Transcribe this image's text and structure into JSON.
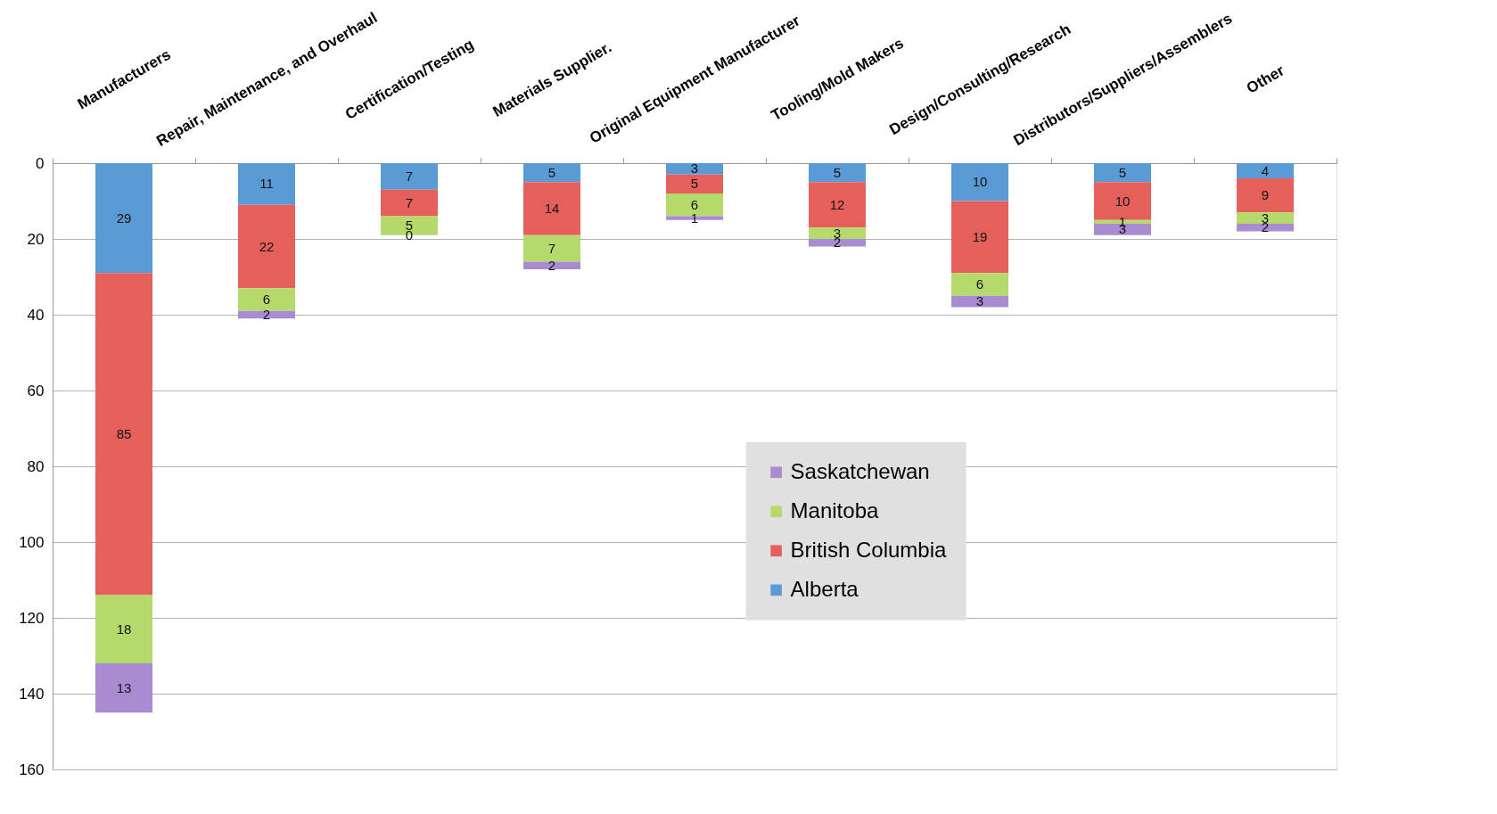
{
  "chart_data": {
    "type": "bar",
    "stacked": true,
    "data_labels": true,
    "grid": "y",
    "legend": "bottom right",
    "categories": [
      "Manufacturers",
      "Repair, Maintenance, and Overhaul",
      "Certification/Testing",
      "Materials Supplier.",
      "Original Equipment Manufacturer",
      "Tooling/Mold Makers",
      "Design/Consulting/Research",
      "Distributors/Suppliers/Assemblers",
      "Other"
    ],
    "ylim": [
      160,
      0
    ],
    "yticks": [
      0,
      20,
      40,
      60,
      80,
      100,
      120,
      140,
      160
    ],
    "series": [
      {
        "name": "Alberta",
        "color": "#5b9bd5",
        "values": [
          29,
          11,
          7,
          5,
          3,
          5,
          10,
          5,
          4
        ]
      },
      {
        "name": "British Columbia",
        "color": "#e5605a",
        "values": [
          85,
          22,
          7,
          14,
          5,
          12,
          19,
          10,
          9
        ]
      },
      {
        "name": "Manitoba",
        "color": "#b5d96b",
        "values": [
          18,
          6,
          5,
          7,
          6,
          3,
          6,
          1,
          3
        ]
      },
      {
        "name": "Saskatchewan",
        "color": "#a98bd2",
        "values": [
          13,
          2,
          0,
          2,
          1,
          2,
          3,
          3,
          2
        ]
      }
    ]
  }
}
